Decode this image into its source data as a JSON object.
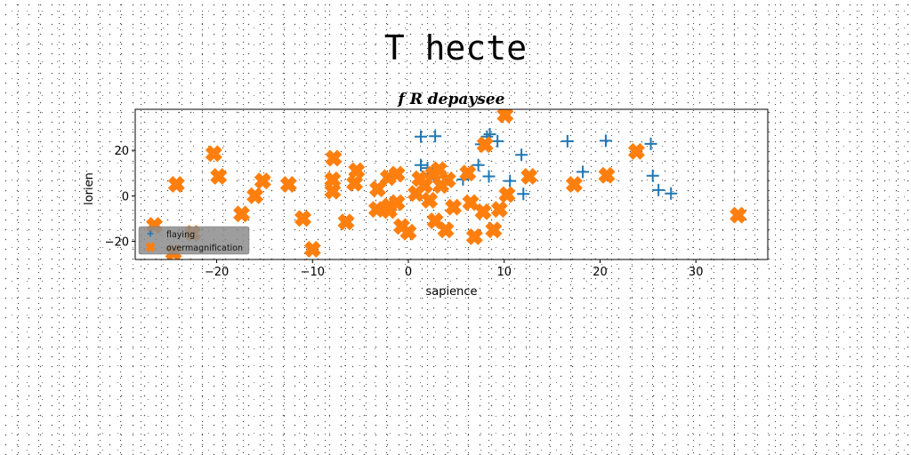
{
  "suptitle": "T hecte",
  "chart_data": {
    "type": "scatter",
    "title": "f R depaysee",
    "xlabel": "sapience",
    "ylabel": "lorien",
    "xlim": [
      -28.5,
      37.5
    ],
    "ylim": [
      -28,
      38
    ],
    "xticks": [
      -20,
      -10,
      0,
      10,
      20,
      30
    ],
    "yticks": [
      -20,
      0,
      20
    ],
    "xtick_labels": [
      "−20",
      "−10",
      "0",
      "10",
      "20",
      "30"
    ],
    "ytick_labels": [
      "−20",
      "0",
      "20"
    ],
    "grid": false,
    "legend_position": "lower-left",
    "series": [
      {
        "name": "flaying",
        "marker": "plus",
        "color": "#1f77b4",
        "points": [
          [
            1.3,
            26
          ],
          [
            2.8,
            26.2
          ],
          [
            8.2,
            26
          ],
          [
            8.5,
            27
          ],
          [
            7.6,
            22.6
          ],
          [
            9.3,
            24
          ],
          [
            11.8,
            18
          ],
          [
            16.6,
            24
          ],
          [
            20.6,
            24.2
          ],
          [
            25.3,
            22.8
          ],
          [
            1.3,
            13.5
          ],
          [
            2,
            12.2
          ],
          [
            7.3,
            13.5
          ],
          [
            8.4,
            8.5
          ],
          [
            10.6,
            6.5
          ],
          [
            5.7,
            7.2
          ],
          [
            18.2,
            10.5
          ],
          [
            25.5,
            8.8
          ],
          [
            26.1,
            2.5
          ],
          [
            27.4,
            1
          ],
          [
            12,
            0.8
          ],
          [
            2.6,
            9.6
          ],
          [
            3.9,
            6
          ]
        ]
      },
      {
        "name": "overmagnification",
        "marker": "x-filled",
        "color": "#ff7f0e",
        "points": [
          [
            10.1,
            35.5
          ],
          [
            -20.3,
            18.5
          ],
          [
            -7.8,
            16.5
          ],
          [
            -19.8,
            8.5
          ],
          [
            -24.2,
            5
          ],
          [
            -15.2,
            6.5
          ],
          [
            -12.5,
            5
          ],
          [
            -5.4,
            11
          ],
          [
            -5.6,
            5.5
          ],
          [
            -7.9,
            7
          ],
          [
            -7.9,
            2
          ],
          [
            -3.2,
            3
          ],
          [
            -2.1,
            8
          ],
          [
            -1.2,
            9.5
          ],
          [
            1.2,
            7.5
          ],
          [
            3.2,
            11.5
          ],
          [
            2.6,
            9.5
          ],
          [
            3.4,
            4.5
          ],
          [
            4.1,
            7
          ],
          [
            1.7,
            4.5
          ],
          [
            6.2,
            10
          ],
          [
            8,
            22.5
          ],
          [
            12.6,
            8.5
          ],
          [
            17.3,
            5
          ],
          [
            20.7,
            9
          ],
          [
            23.8,
            19.5
          ],
          [
            34.4,
            -8.5
          ],
          [
            -16,
            0
          ],
          [
            -17.4,
            -8
          ],
          [
            -11,
            -10
          ],
          [
            -6.5,
            -11.5
          ],
          [
            -3.3,
            -6
          ],
          [
            -2,
            -4.5
          ],
          [
            -1.2,
            -3
          ],
          [
            -2,
            -6.5
          ],
          [
            -0.7,
            -13.5
          ],
          [
            0,
            -16
          ],
          [
            2.8,
            -11
          ],
          [
            3.9,
            -15
          ],
          [
            4.7,
            -5
          ],
          [
            6.9,
            -18
          ],
          [
            7.8,
            -7
          ],
          [
            6.5,
            -3
          ],
          [
            8.9,
            -15
          ],
          [
            9.5,
            -6
          ],
          [
            10.3,
            0.5
          ],
          [
            -10,
            -23.5
          ],
          [
            -26.5,
            -13
          ],
          [
            -22.5,
            -16.5
          ],
          [
            -24.5,
            -25
          ],
          [
            0.8,
            1
          ],
          [
            2.2,
            -2
          ]
        ]
      }
    ]
  }
}
